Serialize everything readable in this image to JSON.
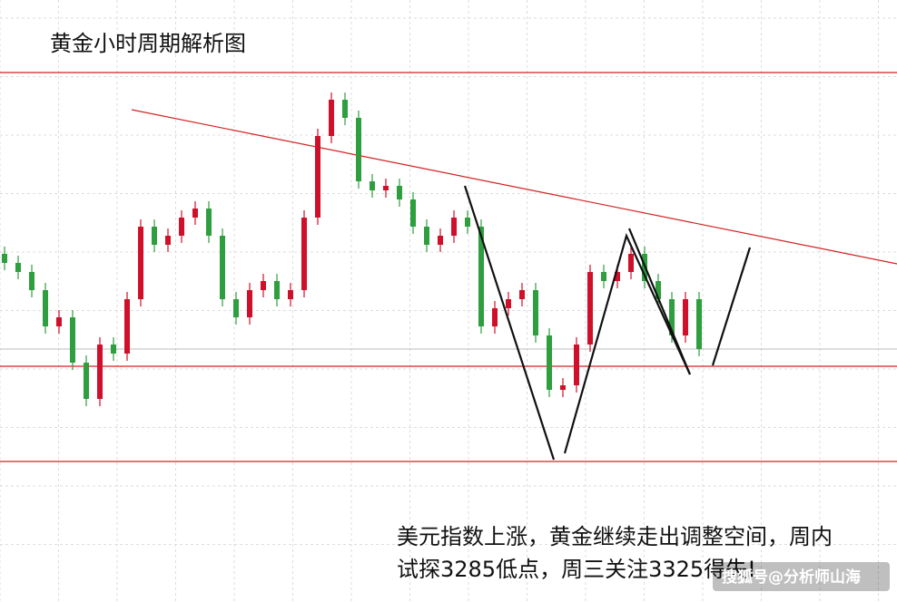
{
  "chart_data": {
    "type": "candlestick",
    "title": "黄金小时周期解析图",
    "annotation": [
      "美元指数上涨，黄金继续走出调整空间，周内",
      "试探3285低点，周三关注3325得失!"
    ],
    "watermark": "搜狐号@分析师山海",
    "ylim": [
      0,
      664
    ],
    "up_color": "#d0102a",
    "down_color": "#2e9e3e",
    "level_color": "#d42020",
    "levels": [
      584,
      260,
      155
    ],
    "open": [
      384,
      374,
      364,
      344,
      304,
      314,
      264,
      224,
      284,
      274,
      334,
      414,
      394,
      404,
      424,
      434,
      404,
      334,
      314,
      344,
      354,
      334,
      344,
      424,
      514,
      554,
      534,
      464,
      454,
      459,
      444,
      414,
      394,
      404,
      424,
      414,
      304,
      324,
      334,
      344,
      294,
      234,
      239,
      284,
      364,
      354,
      364,
      384,
      354,
      334,
      294,
      334
    ],
    "high": [
      392,
      382,
      372,
      352,
      322,
      322,
      272,
      292,
      292,
      342,
      422,
      422,
      412,
      432,
      442,
      442,
      412,
      342,
      352,
      362,
      362,
      352,
      432,
      522,
      562,
      562,
      542,
      472,
      467,
      467,
      452,
      422,
      412,
      432,
      432,
      422,
      332,
      342,
      352,
      352,
      302,
      247,
      292,
      372,
      372,
      372,
      392,
      392,
      362,
      342,
      342,
      342
    ],
    "low": [
      366,
      356,
      336,
      296,
      296,
      256,
      216,
      216,
      266,
      266,
      326,
      386,
      386,
      396,
      416,
      396,
      326,
      306,
      306,
      336,
      326,
      326,
      336,
      416,
      506,
      526,
      456,
      446,
      446,
      436,
      406,
      386,
      386,
      396,
      406,
      296,
      296,
      316,
      326,
      286,
      226,
      226,
      231,
      276,
      346,
      346,
      356,
      346,
      326,
      286,
      286,
      271
    ],
    "close": [
      374,
      364,
      344,
      304,
      314,
      264,
      224,
      284,
      274,
      334,
      414,
      394,
      404,
      424,
      434,
      404,
      334,
      314,
      344,
      354,
      334,
      344,
      424,
      514,
      554,
      534,
      464,
      454,
      459,
      444,
      414,
      394,
      404,
      424,
      414,
      304,
      324,
      334,
      344,
      294,
      234,
      239,
      284,
      364,
      354,
      364,
      384,
      354,
      334,
      294,
      334,
      279
    ]
  }
}
